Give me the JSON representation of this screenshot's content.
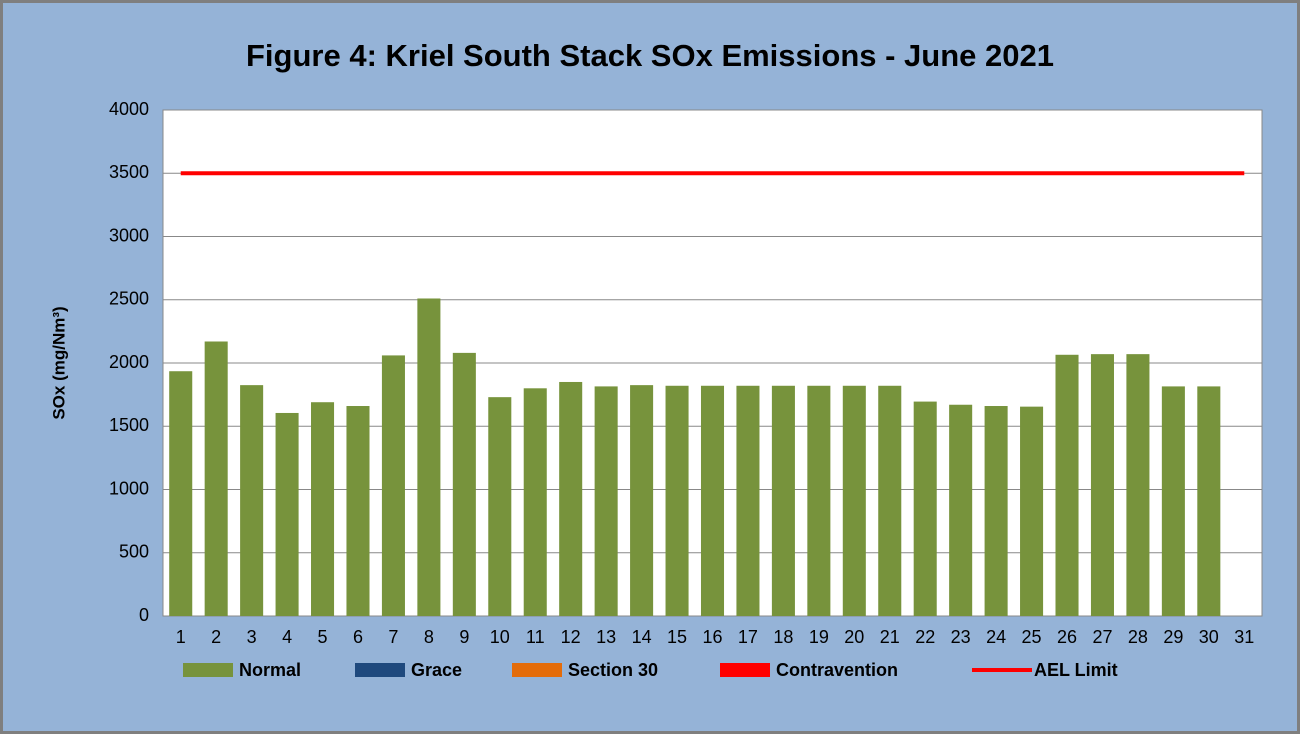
{
  "chart_data": {
    "type": "bar",
    "title": "Figure 4: Kriel South Stack SOx Emissions -  June 2021",
    "y_label": "SOx (mg/Nm³)",
    "categories": [
      "1",
      "2",
      "3",
      "4",
      "5",
      "6",
      "7",
      "8",
      "9",
      "10",
      "11",
      "12",
      "13",
      "14",
      "15",
      "16",
      "17",
      "18",
      "19",
      "20",
      "21",
      "22",
      "23",
      "24",
      "25",
      "26",
      "27",
      "28",
      "29",
      "30",
      "31"
    ],
    "series": [
      {
        "name": "Normal",
        "color": "#77933c",
        "values": [
          1935,
          2170,
          1825,
          1605,
          1690,
          1660,
          2060,
          2510,
          2080,
          1730,
          1800,
          1850,
          1815,
          1825,
          1820,
          1820,
          1820,
          1820,
          1820,
          1820,
          1820,
          1695,
          1670,
          1660,
          1655,
          2065,
          2070,
          2070,
          1815,
          1815,
          null
        ]
      },
      {
        "name": "Grace",
        "color": "#1f497d",
        "values": [
          null,
          null,
          null,
          null,
          null,
          null,
          null,
          null,
          null,
          null,
          null,
          null,
          null,
          null,
          null,
          null,
          null,
          null,
          null,
          null,
          null,
          null,
          null,
          null,
          null,
          null,
          null,
          null,
          null,
          null,
          null
        ]
      },
      {
        "name": "Section 30",
        "color": "#e46c0a",
        "values": [
          null,
          null,
          null,
          null,
          null,
          null,
          null,
          null,
          null,
          null,
          null,
          null,
          null,
          null,
          null,
          null,
          null,
          null,
          null,
          null,
          null,
          null,
          null,
          null,
          null,
          null,
          null,
          null,
          null,
          null,
          null
        ]
      },
      {
        "name": "Contravention",
        "color": "#ff0000",
        "values": [
          null,
          null,
          null,
          null,
          null,
          null,
          null,
          null,
          null,
          null,
          null,
          null,
          null,
          null,
          null,
          null,
          null,
          null,
          null,
          null,
          null,
          null,
          null,
          null,
          null,
          null,
          null,
          null,
          null,
          null,
          null
        ]
      },
      {
        "name": "AEL Limit",
        "type": "line",
        "color": "#ff0000",
        "values": [
          3500,
          3500,
          3500,
          3500,
          3500,
          3500,
          3500,
          3500,
          3500,
          3500,
          3500,
          3500,
          3500,
          3500,
          3500,
          3500,
          3500,
          3500,
          3500,
          3500,
          3500,
          3500,
          3500,
          3500,
          3500,
          3500,
          3500,
          3500,
          3500,
          3500,
          3500
        ]
      }
    ],
    "ylim": [
      0,
      4000
    ],
    "yticks": [
      0,
      500,
      1000,
      1500,
      2000,
      2500,
      3000,
      3500,
      4000
    ],
    "grid": true,
    "legend": "bottom"
  }
}
